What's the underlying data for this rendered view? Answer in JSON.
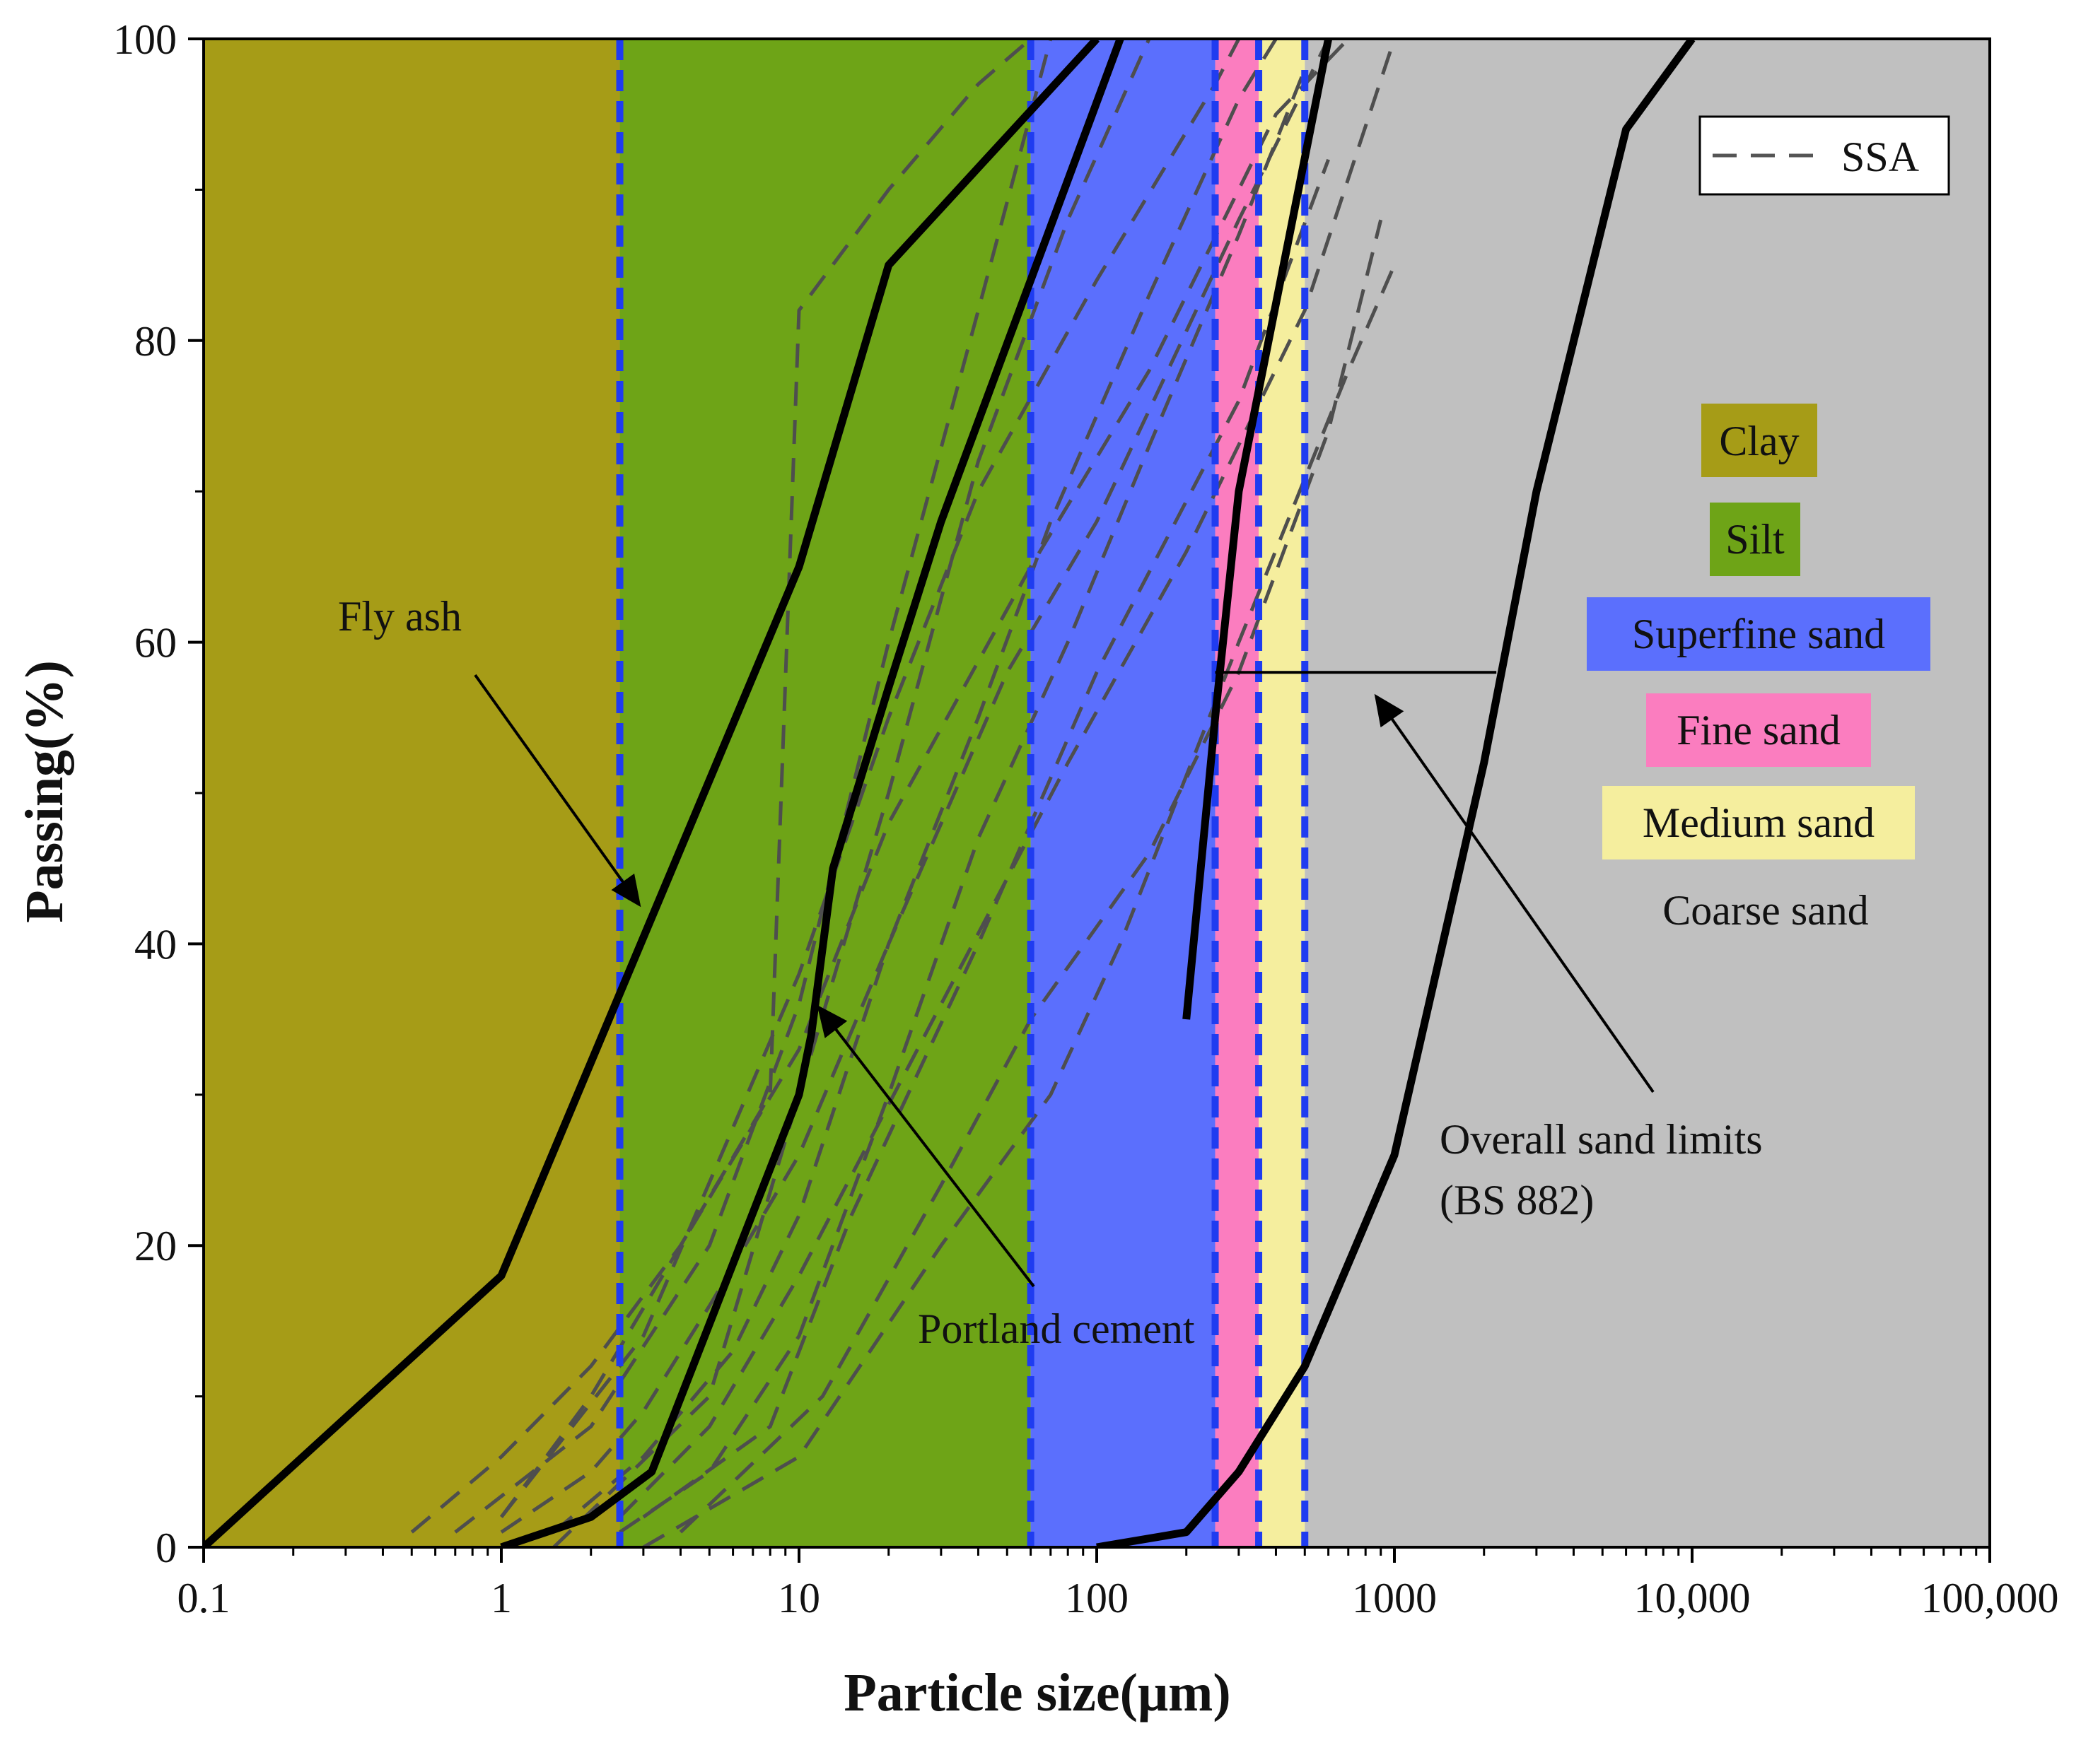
{
  "chart_data": {
    "type": "line",
    "xscale": "log",
    "xlabel": "Particle size(μm)",
    "ylabel": "Passing(%)",
    "xlim": [
      0.1,
      100000
    ],
    "ylim": [
      0,
      100
    ],
    "xticks": [
      0.1,
      1,
      10,
      100,
      1000,
      10000,
      100000
    ],
    "xtick_labels": [
      "0.1",
      "1",
      "10",
      "100",
      "1000",
      "10,000",
      "100,000"
    ],
    "yticks": [
      0,
      20,
      40,
      60,
      80,
      100
    ],
    "ytick_labels": [
      "0",
      "20",
      "40",
      "60",
      "80",
      "100"
    ],
    "zones": [
      {
        "name": "Clay",
        "from": 0.1,
        "to": 2.5,
        "color": "#a69c17"
      },
      {
        "name": "Silt",
        "from": 2.5,
        "to": 60,
        "color": "#6ea417"
      },
      {
        "name": "Superfine sand",
        "from": 60,
        "to": 250,
        "color": "#5b6ffd"
      },
      {
        "name": "Fine sand",
        "from": 250,
        "to": 350,
        "color": "#fb7dbf"
      },
      {
        "name": "Medium sand",
        "from": 350,
        "to": 500,
        "color": "#f5ee9e"
      },
      {
        "name": "Coarse sand",
        "from": 500,
        "to": 100000,
        "color": "#c0c0c0"
      }
    ],
    "zone_boundaries": [
      2.5,
      60,
      250,
      350,
      500
    ],
    "boundary_color": "#1f3cf0",
    "legend": {
      "label": "SSA",
      "style": "dashed",
      "position": "top-right"
    },
    "solid_series": [
      {
        "name": "Fly ash",
        "points": [
          [
            0.1,
            0
          ],
          [
            1,
            18
          ],
          [
            10,
            65
          ],
          [
            20,
            85
          ],
          [
            100,
            100
          ]
        ]
      },
      {
        "name": "Portland cement",
        "points": [
          [
            1,
            0
          ],
          [
            2,
            2
          ],
          [
            3.2,
            5
          ],
          [
            10,
            30
          ],
          [
            11,
            34
          ],
          [
            13,
            45
          ],
          [
            20,
            57
          ],
          [
            30,
            68
          ],
          [
            120,
            100
          ]
        ]
      },
      {
        "name": "Overall sand limits (BS 882) lower",
        "points": [
          [
            100,
            0
          ],
          [
            200,
            1
          ],
          [
            300,
            5
          ],
          [
            500,
            12
          ],
          [
            1000,
            26
          ],
          [
            2000,
            52
          ],
          [
            3000,
            70
          ],
          [
            6000,
            94
          ],
          [
            10000,
            100
          ]
        ]
      },
      {
        "name": "Overall sand limits (BS 882) upper",
        "points": [
          [
            200,
            35
          ],
          [
            250,
            55
          ],
          [
            300,
            70
          ],
          [
            600,
            100
          ]
        ]
      },
      {
        "name": "Overall sand limits (BS 882) connector",
        "points": [
          [
            250,
            58
          ],
          [
            2200,
            58
          ]
        ]
      }
    ],
    "ssa_series": [
      {
        "name": "SSA 1",
        "points": [
          [
            0.5,
            1
          ],
          [
            1,
            6
          ],
          [
            2,
            12
          ],
          [
            4,
            20
          ],
          [
            8,
            30
          ],
          [
            10,
            82
          ],
          [
            20,
            90
          ],
          [
            40,
            97
          ],
          [
            60,
            100
          ]
        ]
      },
      {
        "name": "SSA 2",
        "points": [
          [
            1,
            1
          ],
          [
            2,
            5
          ],
          [
            3,
            9
          ],
          [
            5,
            16
          ],
          [
            10,
            26
          ],
          [
            20,
            40
          ],
          [
            40,
            55
          ],
          [
            70,
            68
          ],
          [
            150,
            83
          ],
          [
            300,
            96
          ],
          [
            400,
            100
          ]
        ]
      },
      {
        "name": "SSA 3",
        "points": [
          [
            2.5,
            1
          ],
          [
            5,
            5
          ],
          [
            10,
            14
          ],
          [
            20,
            30
          ],
          [
            40,
            47
          ],
          [
            80,
            60
          ],
          [
            150,
            73
          ],
          [
            300,
            87
          ],
          [
            500,
            98
          ]
        ]
      },
      {
        "name": "SSA 4",
        "points": [
          [
            1.5,
            1
          ],
          [
            3,
            6
          ],
          [
            6,
            13
          ],
          [
            10,
            22
          ],
          [
            20,
            40
          ],
          [
            50,
            58
          ],
          [
            100,
            68
          ],
          [
            300,
            88
          ],
          [
            600,
            100
          ]
        ]
      },
      {
        "name": "SSA 5",
        "points": [
          [
            1,
            2
          ],
          [
            2,
            10
          ],
          [
            4,
            20
          ],
          [
            10,
            33
          ],
          [
            20,
            48
          ],
          [
            60,
            65
          ],
          [
            150,
            78
          ],
          [
            400,
            95
          ],
          [
            700,
            100
          ]
        ]
      },
      {
        "name": "SSA 6",
        "points": [
          [
            2.5,
            2
          ],
          [
            5,
            8
          ],
          [
            10,
            18
          ],
          [
            30,
            36
          ],
          [
            80,
            52
          ],
          [
            200,
            66
          ],
          [
            500,
            82
          ],
          [
            1000,
            100
          ]
        ]
      },
      {
        "name": "SSA 7",
        "points": [
          [
            3,
            0
          ],
          [
            10,
            6
          ],
          [
            30,
            20
          ],
          [
            70,
            30
          ],
          [
            120,
            40
          ],
          [
            300,
            60
          ],
          [
            700,
            78
          ],
          [
            1000,
            85
          ]
        ]
      },
      {
        "name": "SSA 8",
        "points": [
          [
            3,
            2
          ],
          [
            8,
            8
          ],
          [
            15,
            22
          ],
          [
            40,
            40
          ],
          [
            100,
            58
          ],
          [
            300,
            76
          ],
          [
            600,
            92
          ]
        ]
      },
      {
        "name": "SSA 9",
        "points": [
          [
            1,
            2
          ],
          [
            3,
            14
          ],
          [
            10,
            38
          ],
          [
            20,
            55
          ],
          [
            40,
            70
          ],
          [
            100,
            84
          ],
          [
            250,
            97
          ],
          [
            300,
            100
          ]
        ]
      },
      {
        "name": "SSA 10",
        "points": [
          [
            1.5,
            0
          ],
          [
            5,
            10
          ],
          [
            10,
            30
          ],
          [
            20,
            50
          ],
          [
            40,
            72
          ],
          [
            80,
            88
          ],
          [
            150,
            100
          ]
        ]
      },
      {
        "name": "SSA 11",
        "points": [
          [
            0.7,
            1
          ],
          [
            2,
            8
          ],
          [
            5,
            20
          ],
          [
            10,
            36
          ],
          [
            20,
            60
          ],
          [
            40,
            82
          ],
          [
            70,
            100
          ]
        ]
      },
      {
        "name": "SSA 12",
        "points": [
          [
            4,
            1
          ],
          [
            12,
            10
          ],
          [
            30,
            24
          ],
          [
            60,
            35
          ],
          [
            150,
            46
          ],
          [
            300,
            58
          ],
          [
            600,
            74
          ],
          [
            900,
            88
          ]
        ]
      }
    ],
    "annotations": [
      {
        "text": "Fly ash",
        "arrow_to": [
          3.5,
          42
        ]
      },
      {
        "text": "Portland cement",
        "arrow_to": [
          11,
          35
        ]
      },
      {
        "text": "Overall sand limits",
        "text2": "(BS 882)",
        "arrow_to": [
          700,
          56
        ]
      }
    ],
    "zone_labels": [
      "Clay",
      "Silt",
      "Superfine sand",
      "Fine sand",
      "Medium sand",
      "Coarse sand"
    ]
  }
}
